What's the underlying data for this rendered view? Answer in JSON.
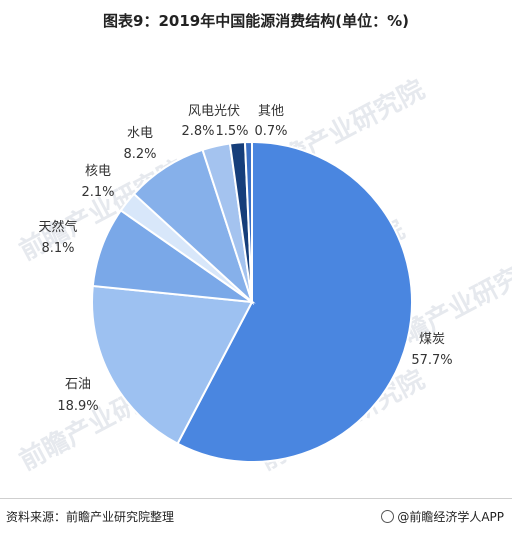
{
  "title": "图表9：2019年中国能源消费结构(单位：%)",
  "watermark_text": "前瞻产业研究院",
  "source": "资料来源：前瞻产业研究院整理",
  "credit": "@前瞻经济学人APP",
  "colors": {
    "煤炭": "#4a86e0",
    "石油": "#9dc1f1",
    "天然气": "#7aa8e8",
    "核电": "#d8e7fa",
    "水电": "#86b0ea",
    "风电光伏": "#a4c3ef",
    "其他_dark": "#163e7a",
    "其他_light": "#3a6fc4"
  },
  "chart_data": {
    "type": "pie",
    "title": "图表9：2019年中国能源消费结构(单位：%)",
    "start_angle": "top, clockwise",
    "slices": [
      {
        "label": "煤炭",
        "value": 57.7,
        "display": "57.7%"
      },
      {
        "label": "石油",
        "value": 18.9,
        "display": "18.9%"
      },
      {
        "label": "天然气",
        "value": 8.1,
        "display": "8.1%"
      },
      {
        "label": "核电",
        "value": 2.1,
        "display": "2.1%"
      },
      {
        "label": "水电",
        "value": 8.2,
        "display": "8.2%"
      },
      {
        "label": "风电光伏",
        "value": 2.8,
        "display": "2.8%"
      },
      {
        "label": "风电光伏",
        "value": 1.5,
        "display": "1.5%"
      },
      {
        "label": "其他",
        "value": 0.7,
        "display": "0.7%"
      }
    ]
  }
}
